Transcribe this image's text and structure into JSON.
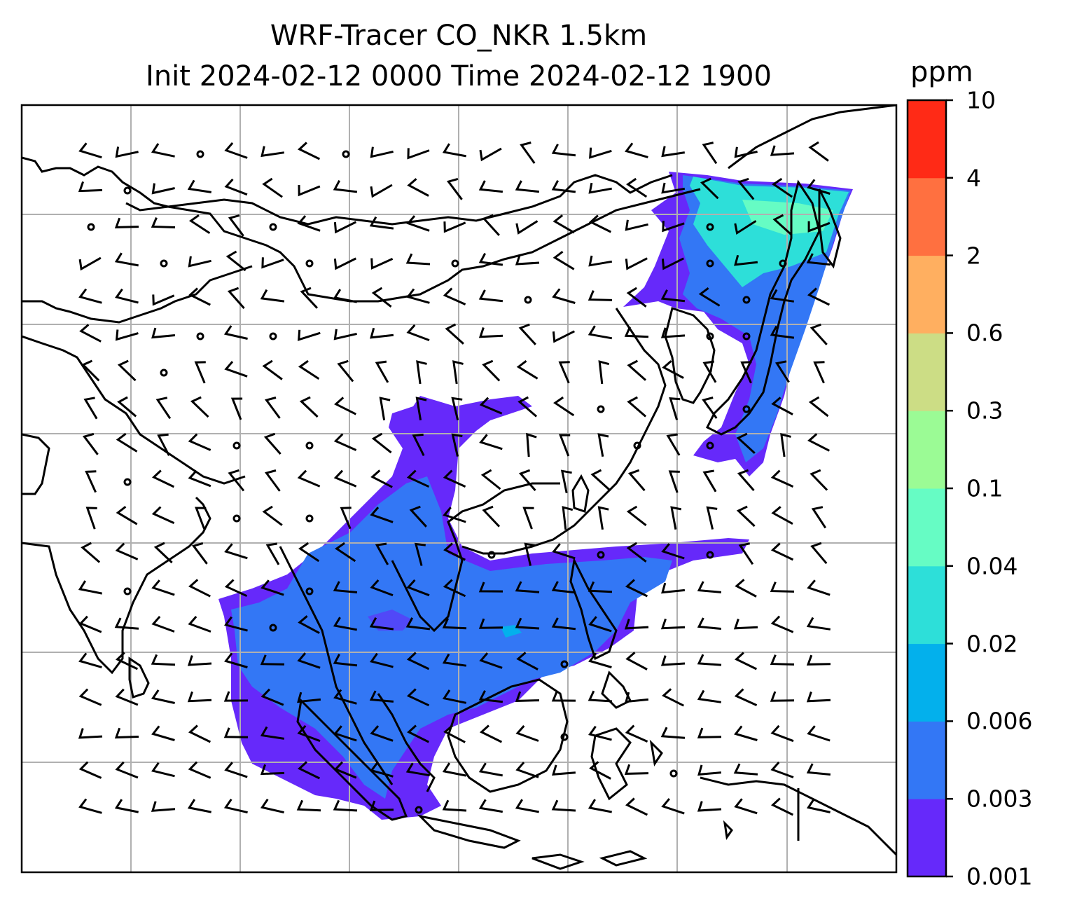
{
  "title": {
    "line1": "WRF-Tracer CO_NKR 1.5km",
    "line2": "Init 2024-02-12 0000 Time 2024-02-12 1900"
  },
  "colorbar": {
    "unit": "ppm",
    "levels": [
      {
        "label": "0.001",
        "color": "#6629fa"
      },
      {
        "label": "0.003",
        "color": "#3377f5"
      },
      {
        "label": "0.006",
        "color": "#03b0ec"
      },
      {
        "label": "0.02",
        "color": "#2ddfd9"
      },
      {
        "label": "0.04",
        "color": "#66fcc4"
      },
      {
        "label": "0.1",
        "color": "#9bfb95"
      },
      {
        "label": "0.3",
        "color": "#ccdd85"
      },
      {
        "label": "0.6",
        "color": "#ffaf60"
      },
      {
        "label": "2",
        "color": "#ff7040"
      },
      {
        "label": "4",
        "color": "#ff2a16"
      }
    ],
    "top_label": "10"
  },
  "map": {
    "gridlines": true,
    "gridline_color": "#b0b0b0",
    "coastline_color": "#000000",
    "wind_barb_color": "#000000"
  }
}
